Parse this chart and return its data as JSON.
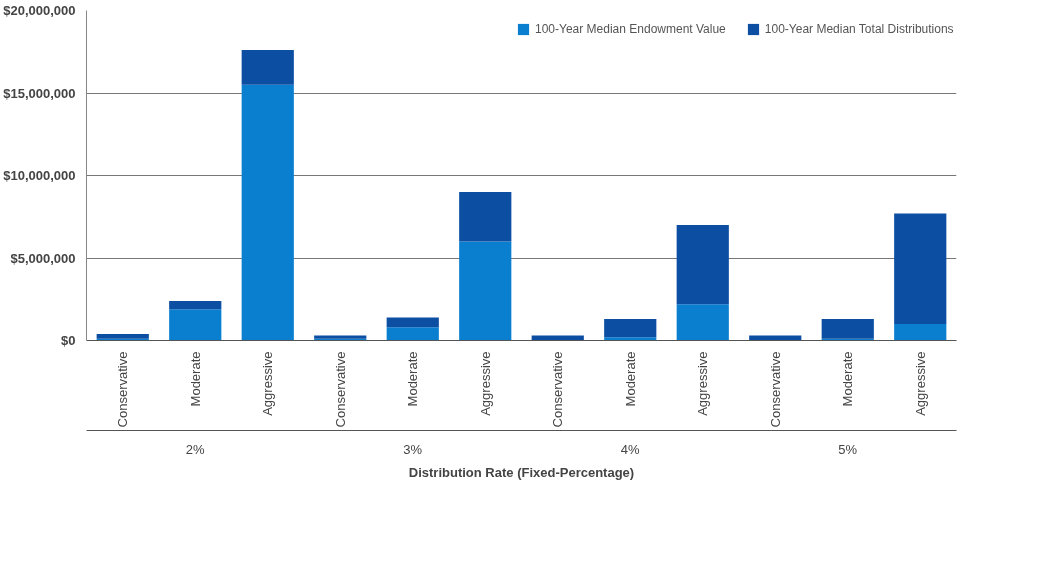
{
  "chart_data": {
    "type": "bar",
    "stacked": true,
    "xlabel": "Distribution Rate (Fixed-Percentage)",
    "categories": [
      "Conservative",
      "Moderate",
      "Aggressive",
      "Conservative",
      "Moderate",
      "Aggressive",
      "Conservative",
      "Moderate",
      "Aggressive",
      "Conservative",
      "Moderate",
      "Aggressive"
    ],
    "annotations": [
      "2%",
      "3%",
      "4%",
      "5%"
    ],
    "series": [
      {
        "name": "100-Year Median Endowment Value",
        "color": "#0a7fcf",
        "values": [
          100000,
          1900000,
          15500000,
          100000,
          800000,
          6000000,
          null,
          200000,
          2200000,
          null,
          100000,
          1000000
        ]
      },
      {
        "name": "100-Year Median Total Distributions",
        "color": "#0b4ea2",
        "values": [
          300000,
          500000,
          2100000,
          200000,
          600000,
          3000000,
          300000,
          1100000,
          4800000,
          300000,
          1200000,
          6700000
        ]
      }
    ],
    "ylim": [
      0,
      20000000
    ],
    "yticks": [
      {
        "value": 0,
        "label": "$0"
      },
      {
        "value": 5000000,
        "label": "$5,000,000"
      },
      {
        "value": 10000000,
        "label": "$10,000,000"
      },
      {
        "value": 15000000,
        "label": "$15,000,000"
      },
      {
        "value": 20000000,
        "label": "$20,000,000"
      }
    ],
    "grid": "y",
    "legend": "top right"
  }
}
